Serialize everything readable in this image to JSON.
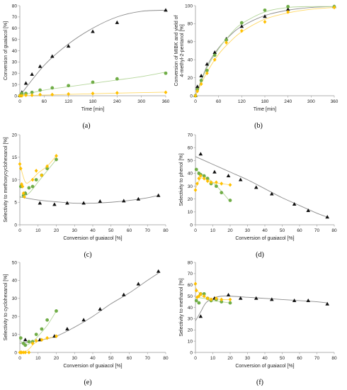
{
  "colors": {
    "black": "#111111",
    "green": "#70ad47",
    "yellow": "#ffc000",
    "black_line": "#8c8c8c",
    "green_line": "#b5d69b",
    "yellow_line": "#ffd966"
  },
  "chart_data": [
    {
      "type": "scatter",
      "panel": "(a)",
      "xlabel": "Time [min]",
      "ylabel": "Conversion of guaiacol [%]",
      "xlim": [
        0,
        360
      ],
      "ylim": [
        0,
        80
      ],
      "xticks": [
        0,
        60,
        120,
        180,
        240,
        300,
        360
      ],
      "yticks": [
        0,
        10,
        20,
        30,
        40,
        50,
        60,
        70,
        80
      ],
      "series": [
        {
          "color": "black",
          "marker": "triangle",
          "x": [
            0,
            5,
            15,
            30,
            50,
            80,
            120,
            180,
            240,
            360
          ],
          "y": [
            0,
            3,
            11,
            19,
            26,
            35,
            44,
            57,
            65,
            76
          ],
          "fit": {
            "x": [
              0,
              60,
              120,
              180,
              240,
              300,
              360
            ],
            "y": [
              0,
              27,
              46,
              60,
              70,
              75,
              76
            ]
          }
        },
        {
          "color": "green",
          "marker": "circle",
          "x": [
            0,
            5,
            15,
            30,
            50,
            80,
            120,
            180,
            240,
            360
          ],
          "y": [
            0,
            2,
            2,
            3,
            5,
            7,
            9,
            12,
            15,
            20
          ],
          "fit": {
            "x": [
              0,
              60,
              120,
              180,
              240,
              300,
              360
            ],
            "y": [
              0,
              5,
              8,
              11,
              14,
              17,
              21
            ]
          }
        },
        {
          "color": "yellow",
          "marker": "diamond",
          "x": [
            0,
            5,
            15,
            30,
            50,
            80,
            120,
            180,
            240,
            360
          ],
          "y": [
            0,
            0,
            0.5,
            0.5,
            1,
            1,
            1.5,
            2,
            2.5,
            3
          ],
          "fit": {
            "x": [
              0,
              120,
              240,
              360
            ],
            "y": [
              0,
              1.2,
              2.3,
              3.2
            ]
          }
        }
      ]
    },
    {
      "type": "scatter",
      "panel": "(b)",
      "xlabel": "Time [min]",
      "ylabel": "Conversion of MIBK and yield of 4-methyl-2-pentanol [%]",
      "ylabel_lines": [
        "Conversion of MIBK and yield of",
        "4-methyl-2-pentanol [%]"
      ],
      "xlim": [
        0,
        360
      ],
      "ylim": [
        0,
        100
      ],
      "xticks": [
        0,
        60,
        120,
        180,
        240,
        300,
        360
      ],
      "yticks": [
        0,
        20,
        40,
        60,
        80,
        100
      ],
      "series": [
        {
          "color": "black",
          "marker": "triangle",
          "x": [
            0,
            5,
            15,
            30,
            50,
            80,
            120,
            180,
            240,
            360
          ],
          "y": [
            0,
            10,
            22,
            35,
            48,
            63,
            77,
            88,
            96,
            99
          ],
          "fit": {
            "x": [
              0,
              30,
              60,
              90,
              120,
              180,
              240,
              300,
              360
            ],
            "y": [
              0,
              33,
              53,
              67,
              77,
              89,
              95,
              98,
              99
            ]
          }
        },
        {
          "color": "green",
          "marker": "circle",
          "x": [
            0,
            5,
            15,
            30,
            50,
            80,
            120,
            180,
            240,
            360
          ],
          "y": [
            0,
            7,
            17,
            28,
            45,
            62,
            81,
            95,
            99,
            99
          ],
          "fit": {
            "x": [
              0,
              30,
              60,
              90,
              120,
              180,
              240,
              300,
              360
            ],
            "y": [
              0,
              31,
              52,
              68,
              80,
              93,
              98,
              99,
              99
            ]
          }
        },
        {
          "color": "yellow",
          "marker": "diamond",
          "x": [
            0,
            5,
            15,
            30,
            50,
            80,
            120,
            180,
            240,
            360
          ],
          "y": [
            0,
            5,
            13,
            25,
            40,
            59,
            72,
            82,
            93,
            98
          ],
          "fit": {
            "x": [
              0,
              30,
              60,
              90,
              120,
              180,
              240,
              300,
              360
            ],
            "y": [
              0,
              26,
              46,
              60,
              71,
              85,
              92,
              96,
              98
            ]
          }
        }
      ]
    },
    {
      "type": "scatter",
      "panel": "(c)",
      "xlabel": "Conversion of guaiacol [%]",
      "ylabel": "Selectivity to methoxycyclohexanol [%]",
      "xlim": [
        0,
        80
      ],
      "ylim": [
        0,
        20
      ],
      "xticks": [
        0,
        10,
        20,
        30,
        40,
        50,
        60,
        70,
        80
      ],
      "yticks": [
        0,
        5,
        10,
        15,
        20
      ],
      "series": [
        {
          "color": "black",
          "marker": "triangle",
          "x": [
            3,
            11,
            19,
            26,
            35,
            44,
            57,
            65,
            76
          ],
          "y": [
            7,
            4.8,
            4.5,
            4.8,
            4.8,
            5.2,
            5.3,
            5.7,
            6.5
          ],
          "fit": {
            "x": [
              0,
              10,
              20,
              30,
              40,
              50,
              60,
              70,
              76
            ],
            "y": [
              6.2,
              5.5,
              5.1,
              4.8,
              4.8,
              5,
              5.4,
              6,
              6.5
            ]
          }
        },
        {
          "color": "green",
          "marker": "circle",
          "x": [
            0.5,
            2,
            3,
            5,
            7,
            9,
            12,
            15,
            20
          ],
          "y": [
            8.5,
            6.5,
            7,
            8.2,
            8.5,
            10,
            11,
            12.5,
            14.5
          ],
          "fit": {
            "x": [
              0,
              5,
              10,
              15,
              20
            ],
            "y": [
              6,
              7,
              9.5,
              12,
              14.5
            ]
          }
        },
        {
          "color": "yellow",
          "marker": "diamond",
          "x": [
            0,
            0.5,
            1,
            1.5,
            2,
            2.5,
            7,
            9,
            12,
            15,
            20
          ],
          "y": [
            13.5,
            12.5,
            9,
            8.5,
            7,
            6.2,
            10,
            12,
            11,
            13,
            15.3
          ],
          "fit": {
            "x": [
              0,
              3,
              6,
              10,
              15,
              20
            ],
            "y": [
              13.5,
              9.5,
              9.8,
              11.5,
              13,
              15.3
            ]
          }
        }
      ]
    },
    {
      "type": "scatter",
      "panel": "(d)",
      "xlabel": "Conversion of guaiacol [%]",
      "ylabel": "Selectivity to phenol [%]",
      "xlim": [
        0,
        80
      ],
      "ylim": [
        0,
        70
      ],
      "xticks": [
        0,
        10,
        20,
        30,
        40,
        50,
        60,
        70,
        80
      ],
      "yticks": [
        0,
        10,
        20,
        30,
        40,
        50,
        60,
        70
      ],
      "series": [
        {
          "color": "black",
          "marker": "triangle",
          "x": [
            3,
            11,
            19,
            26,
            35,
            44,
            57,
            65,
            76
          ],
          "y": [
            55,
            41,
            38,
            35,
            29,
            24,
            16,
            11,
            6
          ],
          "fit": {
            "x": [
              0,
              10,
              20,
              30,
              40,
              50,
              60,
              70,
              76
            ],
            "y": [
              53,
              47,
              41,
              35,
              28,
              21,
              15,
              9,
              6
            ]
          }
        },
        {
          "color": "green",
          "marker": "circle",
          "x": [
            0.5,
            2,
            3,
            5,
            7,
            9,
            12,
            15,
            20
          ],
          "y": [
            43,
            40,
            39,
            38,
            36,
            32,
            30,
            25,
            19
          ],
          "fit": {
            "x": [
              0,
              5,
              10,
              15,
              20
            ],
            "y": [
              43,
              38,
              33,
              26,
              18
            ]
          }
        },
        {
          "color": "yellow",
          "marker": "diamond",
          "x": [
            0,
            1,
            2,
            3,
            5,
            7,
            9,
            12,
            15,
            20
          ],
          "y": [
            27,
            32,
            36,
            38,
            36,
            34,
            33,
            33,
            32,
            31
          ],
          "fit": {
            "x": [
              0,
              3,
              6,
              10,
              15,
              20
            ],
            "y": [
              28,
              36,
              35,
              33,
              32,
              31
            ]
          }
        }
      ]
    },
    {
      "type": "scatter",
      "panel": "(e)",
      "xlabel": "Conversion of guaiacol [%]",
      "ylabel": "Selectivity to cyclohexanol [%]",
      "xlim": [
        0,
        80
      ],
      "ylim": [
        0,
        50
      ],
      "xticks": [
        0,
        10,
        20,
        30,
        40,
        50,
        60,
        70,
        80
      ],
      "yticks": [
        0,
        10,
        20,
        30,
        40,
        50
      ],
      "series": [
        {
          "color": "black",
          "marker": "triangle",
          "x": [
            3,
            11,
            19,
            26,
            35,
            44,
            57,
            65,
            76
          ],
          "y": [
            7,
            7,
            9,
            13,
            18,
            24,
            32,
            38,
            45
          ],
          "fit": {
            "x": [
              0,
              10,
              20,
              30,
              40,
              50,
              60,
              70,
              76
            ],
            "y": [
              5,
              6.5,
              9,
              14,
              20,
              27,
              33,
              40,
              44
            ]
          }
        },
        {
          "color": "green",
          "marker": "circle",
          "x": [
            0.5,
            2,
            3,
            5,
            7,
            9,
            12,
            15,
            20
          ],
          "y": [
            8,
            5,
            4,
            6,
            6,
            10,
            13,
            18,
            23
          ],
          "fit": {
            "x": [
              0,
              3,
              7,
              10,
              15,
              20
            ],
            "y": [
              7,
              4,
              6,
              9,
              15,
              23
            ]
          }
        },
        {
          "color": "yellow",
          "marker": "diamond",
          "x": [
            0,
            0.5,
            1,
            2,
            3,
            5,
            7,
            9,
            12,
            15,
            20
          ],
          "y": [
            0,
            0,
            0,
            0,
            0,
            0,
            5,
            6.5,
            7,
            8,
            9
          ],
          "fit": {
            "x": [
              0,
              4,
              8,
              12,
              16,
              20
            ],
            "y": [
              0,
              1,
              5,
              7,
              8,
              9
            ]
          }
        }
      ]
    },
    {
      "type": "scatter",
      "panel": "(f)",
      "xlabel": "Conversion of guaiacol [%]",
      "ylabel": "Selectivity to methanol [%]",
      "xlim": [
        0,
        80
      ],
      "ylim": [
        0,
        80
      ],
      "xticks": [
        0,
        10,
        20,
        30,
        40,
        50,
        60,
        70,
        80
      ],
      "yticks": [
        0,
        10,
        20,
        30,
        40,
        50,
        60,
        70,
        80
      ],
      "series": [
        {
          "color": "black",
          "marker": "triangle",
          "x": [
            3,
            11,
            19,
            26,
            35,
            44,
            57,
            65,
            76
          ],
          "y": [
            32,
            48,
            51,
            48,
            48,
            47,
            46,
            46,
            43
          ],
          "fit": {
            "x": [
              0,
              3,
              6,
              10,
              15,
              20,
              30,
              40,
              50,
              60,
              70,
              76
            ],
            "y": [
              28,
              36,
              44,
              48,
              50,
              50,
              49,
              48,
              47,
              46,
              45,
              44
            ]
          }
        },
        {
          "color": "green",
          "marker": "circle",
          "x": [
            0.5,
            2,
            3,
            5,
            7,
            9,
            12,
            15,
            20
          ],
          "y": [
            46,
            44,
            52,
            52,
            48,
            46,
            47,
            45,
            44
          ],
          "fit": {
            "x": [
              0,
              5,
              10,
              15,
              20
            ],
            "y": [
              49,
              48,
              46,
              45,
              44
            ]
          }
        },
        {
          "color": "yellow",
          "marker": "diamond",
          "x": [
            0,
            0.5,
            1,
            2,
            3,
            5,
            7,
            9,
            12,
            15,
            20
          ],
          "y": [
            61,
            55,
            49,
            50,
            52,
            50,
            48,
            47,
            48,
            47,
            47
          ],
          "fit": {
            "x": [
              0,
              3,
              6,
              10,
              15,
              20
            ],
            "y": [
              58,
              51,
              49,
              48,
              47,
              47
            ]
          }
        }
      ]
    }
  ]
}
